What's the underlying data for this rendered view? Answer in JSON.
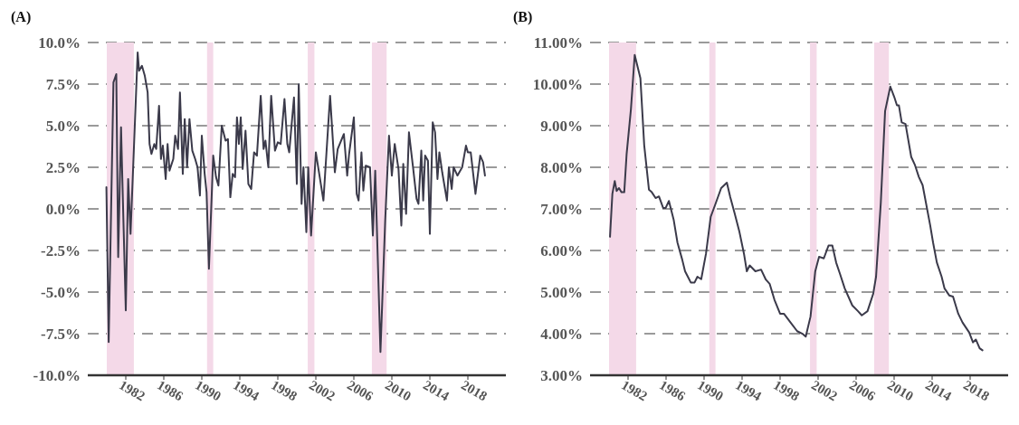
{
  "chart_data": [
    {
      "type": "line",
      "title": "(A)",
      "color": "#3b3a4a",
      "grid": "y",
      "x": [
        1979.96,
        1980.2,
        1980.7,
        1981.0,
        1981.2,
        1981.5,
        1981.7,
        1982.0,
        1982.25,
        1982.5,
        1983.25,
        1983.4,
        1983.7,
        1984.0,
        1984.3,
        1984.5,
        1984.7,
        1985.0,
        1985.2,
        1985.5,
        1985.7,
        1985.9,
        1986.2,
        1986.4,
        1986.6,
        1987.0,
        1987.2,
        1987.5,
        1987.7,
        1988.0,
        1988.2,
        1988.45,
        1988.7,
        1989.0,
        1989.3,
        1989.55,
        1989.8,
        1990.0,
        1990.3,
        1990.5,
        1990.75,
        1991.2,
        1991.5,
        1991.75,
        1992.1,
        1992.5,
        1992.75,
        1993.0,
        1993.25,
        1993.5,
        1993.7,
        1993.9,
        1994.1,
        1994.3,
        1994.6,
        1994.9,
        1995.2,
        1995.5,
        1995.8,
        1996.2,
        1996.5,
        1996.7,
        1997.0,
        1997.3,
        1997.7,
        1998.0,
        1998.3,
        1998.7,
        1999.0,
        1999.2,
        1999.7,
        2000.0,
        2000.2,
        2000.5,
        2000.7,
        2001.0,
        2001.2,
        2001.5,
        2002.0,
        2002.8,
        2003.5,
        2004.0,
        2004.3,
        2004.95,
        2005.3,
        2005.5,
        2006.0,
        2006.3,
        2006.5,
        2006.8,
        2007.0,
        2007.25,
        2007.7,
        2008.0,
        2008.25,
        2008.8,
        2009.3,
        2009.7,
        2010.0,
        2010.3,
        2010.7,
        2011.0,
        2011.2,
        2011.5,
        2011.8,
        2012.25,
        2012.6,
        2012.8,
        2013.1,
        2013.3,
        2013.5,
        2013.8,
        2014.0,
        2014.3,
        2014.55,
        2014.8,
        2015.0,
        2015.3,
        2015.8,
        2016.0,
        2016.3,
        2016.5,
        2016.9,
        2017.4,
        2017.8,
        2018.0,
        2018.3,
        2018.8,
        2019.3,
        2019.6,
        2019.8
      ],
      "values": [
        1.3,
        -8.0,
        7.6,
        8.1,
        -2.9,
        4.9,
        0.4,
        -6.1,
        1.8,
        -1.5,
        9.4,
        8.3,
        8.6,
        8.0,
        7.0,
        3.9,
        3.3,
        3.9,
        3.6,
        6.2,
        3.0,
        3.8,
        1.8,
        3.9,
        2.3,
        3.0,
        4.4,
        3.6,
        7.0,
        2.1,
        5.4,
        2.5,
        5.4,
        3.5,
        3.0,
        2.5,
        0.8,
        4.4,
        2.1,
        1.0,
        -3.6,
        3.2,
        1.9,
        1.4,
        5.0,
        4.1,
        4.2,
        0.7,
        2.1,
        1.9,
        5.5,
        3.9,
        5.5,
        2.4,
        4.7,
        1.5,
        1.2,
        3.4,
        3.2,
        6.8,
        3.6,
        4.1,
        2.5,
        6.8,
        3.5,
        4.0,
        3.9,
        6.6,
        3.9,
        3.4,
        6.7,
        1.5,
        7.5,
        0.3,
        2.5,
        -1.4,
        2.5,
        -1.6,
        3.4,
        0.5,
        6.8,
        2.2,
        3.6,
        4.5,
        2.0,
        3.3,
        5.5,
        0.9,
        0.5,
        3.4,
        1.1,
        2.6,
        2.5,
        -1.6,
        2.3,
        -8.6,
        -0.7,
        4.4,
        2.0,
        3.9,
        2.4,
        -1.0,
        2.7,
        -0.3,
        4.6,
        2.4,
        0.6,
        0.3,
        3.5,
        0.5,
        3.2,
        2.9,
        -1.5,
        5.2,
        4.6,
        1.8,
        3.4,
        2.2,
        0.5,
        2.5,
        1.2,
        2.5,
        2.0,
        2.5,
        3.8,
        3.4,
        3.4,
        0.9,
        3.2,
        2.8,
        2.0
      ],
      "xlim": [
        1978,
        2022
      ],
      "xticks": [
        1982,
        1986,
        1990,
        1994,
        1998,
        2002,
        2006,
        2010,
        2014,
        2018
      ],
      "ylim": [
        -10,
        10
      ],
      "yticks": [
        {
          "value": -10,
          "label": "-10.0%"
        },
        {
          "value": -7.5,
          "label": "-7.5%"
        },
        {
          "value": -5,
          "label": "-5.0%"
        },
        {
          "value": -2.5,
          "label": "-2.5%"
        },
        {
          "value": 0,
          "label": "0.0%"
        },
        {
          "value": 2.5,
          "label": "2.5%"
        },
        {
          "value": 5,
          "label": "5.0%"
        },
        {
          "value": 7.5,
          "label": "7.5%"
        },
        {
          "value": 10,
          "label": "10.0%"
        }
      ],
      "bands": [
        {
          "axis": "x",
          "from": 1980.0,
          "to": 1982.85,
          "color": "#f4d9e8"
        },
        {
          "axis": "x",
          "from": 1990.55,
          "to": 1991.2,
          "color": "#f4d9e8"
        },
        {
          "axis": "x",
          "from": 2001.15,
          "to": 2001.85,
          "color": "#f4d9e8"
        },
        {
          "axis": "x",
          "from": 2007.9,
          "to": 2009.45,
          "color": "#f4d9e8"
        }
      ]
    },
    {
      "type": "line",
      "title": "(B)",
      "color": "#3b3a4a",
      "grid": "y",
      "x": [
        1980.1,
        1980.35,
        1980.6,
        1980.8,
        1981.05,
        1981.3,
        1981.6,
        1981.85,
        1982.3,
        1982.7,
        1983.3,
        1983.7,
        1984.2,
        1984.5,
        1984.9,
        1985.25,
        1985.7,
        1985.95,
        1986.3,
        1986.8,
        1987.2,
        1987.7,
        1988.0,
        1988.6,
        1989.0,
        1989.3,
        1989.7,
        1990.2,
        1990.7,
        1991.2,
        1991.8,
        1992.4,
        1992.75,
        1993.2,
        1993.7,
        1994.2,
        1994.5,
        1994.8,
        1995.4,
        1996.0,
        1996.5,
        1996.9,
        1997.4,
        1998.0,
        1998.4,
        1999.1,
        1999.8,
        2000.4,
        2000.7,
        2001.2,
        2001.7,
        2002.1,
        2002.6,
        2003.1,
        2003.5,
        2003.9,
        2004.3,
        2004.8,
        2005.6,
        2006.2,
        2006.6,
        2007.2,
        2007.8,
        2008.1,
        2008.6,
        2009.05,
        2009.6,
        2010.0,
        2010.3,
        2010.5,
        2010.8,
        2011.2,
        2011.8,
        2012.2,
        2012.6,
        2013.0,
        2013.8,
        2014.1,
        2014.5,
        2015.0,
        2015.3,
        2015.8,
        2016.2,
        2016.75,
        2017.2,
        2017.9,
        2018.3,
        2018.6,
        2019.0,
        2019.3
      ],
      "values": [
        6.33,
        7.36,
        7.67,
        7.43,
        7.5,
        7.4,
        7.4,
        8.32,
        9.39,
        10.7,
        10.14,
        8.53,
        7.46,
        7.4,
        7.26,
        7.3,
        7.02,
        7.02,
        7.19,
        6.74,
        6.19,
        5.78,
        5.5,
        5.23,
        5.23,
        5.37,
        5.31,
        5.92,
        6.81,
        7.12,
        7.5,
        7.63,
        7.29,
        6.91,
        6.47,
        5.92,
        5.5,
        5.64,
        5.5,
        5.54,
        5.3,
        5.2,
        4.82,
        4.48,
        4.48,
        4.27,
        4.06,
        3.99,
        3.93,
        4.41,
        5.5,
        5.85,
        5.81,
        6.12,
        6.12,
        5.71,
        5.44,
        5.09,
        4.68,
        4.54,
        4.44,
        4.54,
        4.96,
        5.37,
        7.15,
        9.35,
        9.94,
        9.7,
        9.49,
        9.49,
        9.08,
        9.04,
        8.25,
        8.05,
        7.77,
        7.57,
        6.6,
        6.19,
        5.71,
        5.37,
        5.09,
        4.92,
        4.89,
        4.48,
        4.27,
        4.03,
        3.79,
        3.86,
        3.65,
        3.6
      ],
      "xlim": [
        1978,
        2022
      ],
      "xticks": [
        1982,
        1986,
        1990,
        1994,
        1998,
        2002,
        2006,
        2010,
        2014,
        2018
      ],
      "ylim": [
        3,
        11
      ],
      "yticks": [
        {
          "value": 3,
          "label": "3.00%"
        },
        {
          "value": 4,
          "label": "4.00%"
        },
        {
          "value": 5,
          "label": "5.00%"
        },
        {
          "value": 6,
          "label": "6.00%"
        },
        {
          "value": 7,
          "label": "7.00%"
        },
        {
          "value": 8,
          "label": "8.00%"
        },
        {
          "value": 9,
          "label": "9.00%"
        },
        {
          "value": 10,
          "label": "10.00%"
        },
        {
          "value": 11,
          "label": "11.00%"
        }
      ],
      "bands": [
        {
          "axis": "x",
          "from": 1980.0,
          "to": 1982.85,
          "color": "#f4d9e8"
        },
        {
          "axis": "x",
          "from": 1990.55,
          "to": 1991.2,
          "color": "#f4d9e8"
        },
        {
          "axis": "x",
          "from": 2001.15,
          "to": 2001.85,
          "color": "#f4d9e8"
        },
        {
          "axis": "x",
          "from": 2007.9,
          "to": 2009.45,
          "color": "#f4d9e8"
        }
      ]
    }
  ]
}
